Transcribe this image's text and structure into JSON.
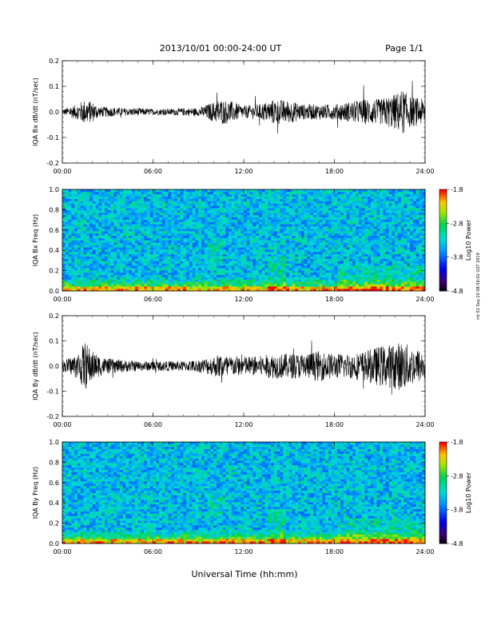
{
  "header": {
    "title": "2013/10/01  00:00-24:00 UT",
    "page": "Page 1/1"
  },
  "footer": {
    "xlabel": "Universal Time (hh:mm)"
  },
  "side_stamp": "mt 01 Sep 20 08:56:02 GST 2019",
  "colors": {
    "background": "#ffffff",
    "line": "#000000"
  },
  "chart_data": [
    {
      "type": "line",
      "title": "",
      "ylabel": "IQA Bx dB/dt (nT/sec)",
      "xlabel": "",
      "xlim": [
        0,
        24
      ],
      "ylim": [
        -0.2,
        0.2
      ],
      "yticks": [
        "-0.2",
        "-0.1",
        "0.0",
        "0.1",
        "0.2"
      ],
      "xticks": [
        "00:00",
        "06:00",
        "12:00",
        "18:00",
        "24:00"
      ],
      "grid": false,
      "series": [
        {
          "x": [
            0,
            1,
            1.5,
            2,
            2.5,
            3,
            4,
            5,
            6,
            7,
            8,
            9,
            10,
            10.5,
            11,
            12,
            13,
            14,
            15,
            16,
            17,
            18,
            19,
            20,
            21,
            22,
            22.5,
            23,
            24
          ],
          "amplitude": [
            0.01,
            0.03,
            0.05,
            0.04,
            0.02,
            0.02,
            0.015,
            0.015,
            0.012,
            0.012,
            0.015,
            0.015,
            0.04,
            0.05,
            0.045,
            0.025,
            0.03,
            0.05,
            0.045,
            0.03,
            0.03,
            0.03,
            0.04,
            0.05,
            0.05,
            0.07,
            0.09,
            0.06,
            0.05
          ]
        }
      ]
    },
    {
      "type": "heatmap",
      "title": "",
      "ylabel": "IQA Bx Freq (Hz)",
      "xlim": [
        0,
        24
      ],
      "ylim": [
        0.0,
        1.0
      ],
      "yticks": [
        "0.0",
        "0.2",
        "0.4",
        "0.6",
        "0.8",
        "1.0"
      ],
      "xticks": [
        "00:00",
        "06:00",
        "12:00",
        "18:00",
        "24:00"
      ],
      "colorbar": {
        "label": "Log10 Power",
        "ticks": [
          "-1.8",
          "-2.8",
          "-3.8",
          "-4.8"
        ],
        "range": [
          -4.8,
          -1.8
        ]
      }
    },
    {
      "type": "line",
      "title": "",
      "ylabel": "IQA By dB/dt (nT/sec)",
      "xlabel": "",
      "xlim": [
        0,
        24
      ],
      "ylim": [
        -0.2,
        0.2
      ],
      "yticks": [
        "-0.2",
        "-0.1",
        "0.0",
        "0.1",
        "0.2"
      ],
      "xticks": [
        "00:00",
        "06:00",
        "12:00",
        "18:00",
        "24:00"
      ],
      "grid": false,
      "series": [
        {
          "x": [
            0,
            1,
            1.5,
            2,
            2.5,
            3,
            4,
            5,
            6,
            7,
            8,
            9,
            10,
            10.5,
            11,
            12,
            13,
            14,
            15,
            16,
            17,
            18,
            19,
            20,
            21,
            22,
            22.5,
            23,
            24
          ],
          "amplitude": [
            0.02,
            0.05,
            0.1,
            0.06,
            0.04,
            0.03,
            0.025,
            0.02,
            0.02,
            0.02,
            0.02,
            0.025,
            0.04,
            0.05,
            0.04,
            0.04,
            0.04,
            0.05,
            0.05,
            0.05,
            0.06,
            0.05,
            0.05,
            0.06,
            0.08,
            0.09,
            0.1,
            0.08,
            0.06
          ]
        }
      ]
    },
    {
      "type": "heatmap",
      "title": "",
      "ylabel": "IQA By Freq (Hz)",
      "xlim": [
        0,
        24
      ],
      "ylim": [
        0.0,
        1.0
      ],
      "yticks": [
        "0.0",
        "0.2",
        "0.4",
        "0.6",
        "0.8",
        "1.0"
      ],
      "xticks": [
        "00:00",
        "06:00",
        "12:00",
        "18:00",
        "24:00"
      ],
      "colorbar": {
        "label": "Log10 Power",
        "ticks": [
          "-1.8",
          "-2.8",
          "-3.8",
          "-4.8"
        ],
        "range": [
          -4.8,
          -1.8
        ]
      }
    }
  ]
}
